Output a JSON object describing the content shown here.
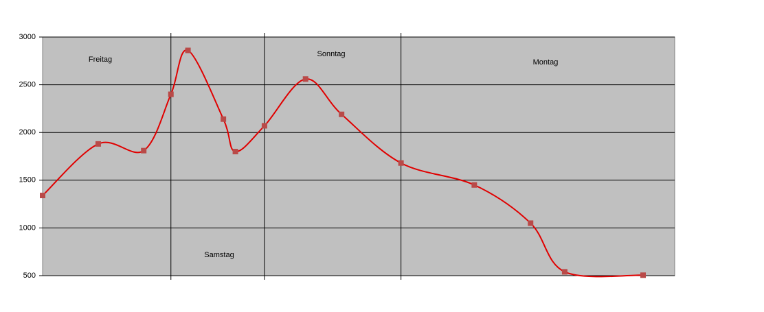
{
  "chart_data": {
    "type": "line",
    "x": [
      0,
      8.8,
      16.0,
      20.3,
      23.0,
      28.6,
      30.5,
      35.1,
      41.6,
      47.3,
      56.7,
      68.3,
      77.2,
      82.6,
      95.0
    ],
    "series": [
      {
        "color": "#e00000",
        "marker_color": "#b94a48",
        "values": [
          1340,
          1880,
          1810,
          2400,
          2860,
          2140,
          1800,
          2070,
          2560,
          2190,
          1680,
          1450,
          1050,
          540,
          505
        ]
      }
    ],
    "xlim": [
      0,
      100
    ],
    "ylim": [
      500,
      3000
    ],
    "yticks": [
      500,
      1000,
      1500,
      2000,
      2500,
      3000
    ],
    "grid": true,
    "smooth": true,
    "day_lines": [
      20.3,
      35.1,
      56.7
    ],
    "annotations": [
      "Freitag",
      "Samstag",
      "Sonntag",
      "Montag"
    ]
  }
}
